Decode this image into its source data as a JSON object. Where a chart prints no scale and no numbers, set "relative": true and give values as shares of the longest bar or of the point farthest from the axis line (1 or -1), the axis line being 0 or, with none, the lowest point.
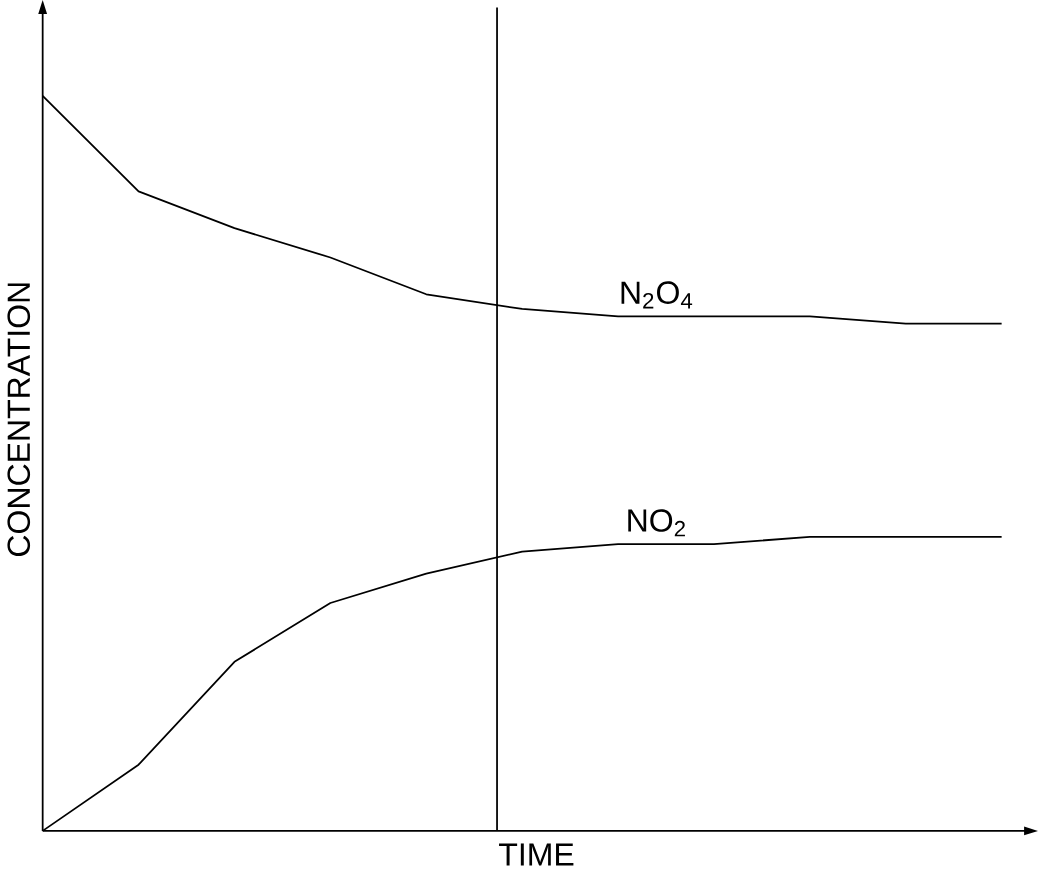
{
  "chart_data": {
    "type": "line",
    "relative": true,
    "xlabel": "TIME",
    "ylabel": "CONCENTRATION",
    "categories": [
      null,
      null,
      null,
      null,
      null,
      null,
      null,
      null,
      null,
      null,
      null
    ],
    "series": [
      {
        "name": "N$_{2}$O$_{4}$",
        "color": "#000000",
        "values": [
          1,
          0.87,
          0.82,
          0.78,
          0.73,
          0.71,
          0.7,
          0.7,
          0.7,
          0.69,
          0.69
        ]
      },
      {
        "name": "NO$_{2}$",
        "color": "#000000",
        "values": [
          0,
          0.09,
          0.23,
          0.31,
          0.35,
          0.38,
          0.39,
          0.39,
          0.4,
          0.4,
          0.4
        ]
      }
    ]
  }
}
